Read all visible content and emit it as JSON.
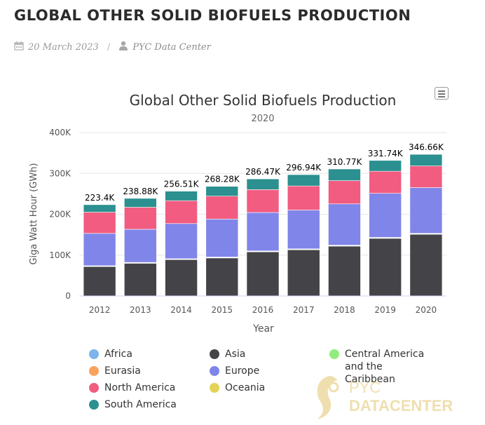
{
  "header": {
    "title": "GLOBAL OTHER SOLID BIOFUELS PRODUCTION",
    "date": "20 March 2023",
    "separator": "/",
    "author": "PYC Data Center"
  },
  "watermark": {
    "line1": "PYC",
    "line2": "DATACENTER"
  },
  "colors": {
    "Africa": "#7cb5ec",
    "Asia": "#434348",
    "Central America and the Caribbean": "#90ed7d",
    "Eurasia": "#f7a35c",
    "Europe": "#8085e9",
    "North America": "#f15c80",
    "Oceania": "#e4d354",
    "South America": "#2b908f"
  },
  "chart_data": {
    "type": "bar",
    "stacked": true,
    "title": "Global Other Solid Biofuels Production",
    "subtitle": "2020",
    "xlabel": "Year",
    "ylabel": "Giga Watt Hour (GWh)",
    "ylim": [
      0,
      400000
    ],
    "yticks": [
      "0",
      "100K",
      "200K",
      "300K",
      "400K"
    ],
    "ytick_values": [
      0,
      100000,
      200000,
      300000,
      400000
    ],
    "grid": true,
    "legend_position": "bottom",
    "categories": [
      "2012",
      "2013",
      "2014",
      "2015",
      "2016",
      "2017",
      "2018",
      "2019",
      "2020"
    ],
    "totals": [
      "223.4K",
      "238.88K",
      "256.51K",
      "268.28K",
      "286.47K",
      "296.94K",
      "310.77K",
      "331.74K",
      "346.66K"
    ],
    "stack_order": [
      "Asia",
      "Africa",
      "Central America and the Caribbean",
      "Oceania",
      "Eurasia",
      "Europe",
      "North America",
      "South America"
    ],
    "series": [
      {
        "name": "Africa",
        "values": [
          500,
          500,
          500,
          500,
          500,
          500,
          500,
          500,
          500
        ]
      },
      {
        "name": "Asia",
        "values": [
          72000,
          80000,
          89000,
          93000,
          108000,
          113000,
          122000,
          141000,
          151000
        ]
      },
      {
        "name": "Central America and the Caribbean",
        "values": [
          300,
          300,
          300,
          300,
          300,
          300,
          300,
          300,
          300
        ]
      },
      {
        "name": "Eurasia",
        "values": [
          300,
          400,
          400,
          500,
          500,
          500,
          500,
          500,
          500
        ]
      },
      {
        "name": "Europe",
        "values": [
          79000,
          81000,
          86000,
          93000,
          94000,
          95000,
          101000,
          108000,
          112000
        ]
      },
      {
        "name": "North America",
        "values": [
          52000,
          54000,
          56000,
          56000,
          56000,
          59000,
          57000,
          54000,
          53000
        ]
      },
      {
        "name": "Oceania",
        "values": [
          1000,
          1000,
          1000,
          1000,
          1000,
          1000,
          1000,
          1000,
          1000
        ]
      },
      {
        "name": "South America",
        "values": [
          18300,
          21680,
          23310,
          23980,
          26170,
          27640,
          28470,
          26440,
          28360
        ]
      }
    ]
  },
  "legend": [
    {
      "label": "Africa"
    },
    {
      "label": "Eurasia"
    },
    {
      "label": "North America"
    },
    {
      "label": "South America"
    },
    {
      "label": "Asia"
    },
    {
      "label": "Europe"
    },
    {
      "label": "Oceania"
    },
    {
      "label": "Central America and the Caribbean"
    }
  ]
}
